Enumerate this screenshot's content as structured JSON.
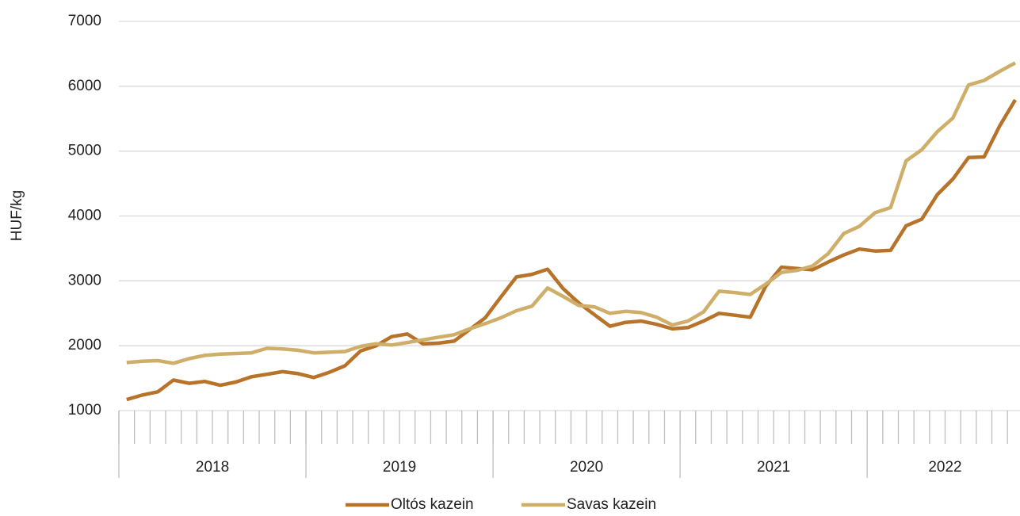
{
  "chart_data": {
    "type": "line",
    "y_label": "HUF/kg",
    "categories": [
      null,
      null,
      null,
      null,
      null,
      null,
      null,
      null,
      null,
      null,
      null,
      null,
      null,
      null,
      null,
      null,
      null,
      null,
      null,
      null,
      null,
      null,
      null,
      null,
      null,
      null,
      null,
      null,
      null,
      null,
      null,
      null,
      null,
      null,
      null,
      null,
      null,
      null,
      null,
      null,
      null,
      null,
      null,
      null,
      null,
      null,
      null,
      null,
      null,
      null,
      null,
      null,
      null,
      null,
      null,
      null,
      null,
      null
    ],
    "groups": [
      {
        "label": "2018",
        "span": 12
      },
      {
        "label": "2019",
        "span": 12
      },
      {
        "label": "2020",
        "span": 12
      },
      {
        "label": "2021",
        "span": 12
      },
      {
        "label": "2022",
        "span": 10
      }
    ],
    "series": [
      {
        "name": "Oltós kazein",
        "color": "#b8732a",
        "values": [
          1170,
          1240,
          1290,
          1470,
          1420,
          1450,
          1390,
          1440,
          1520,
          1560,
          1600,
          1570,
          1510,
          1590,
          1690,
          1920,
          2000,
          2140,
          2180,
          2030,
          2040,
          2070,
          2250,
          2430,
          2750,
          3060,
          3100,
          3180,
          2880,
          2660,
          2480,
          2300,
          2360,
          2380,
          2330,
          2260,
          2280,
          2380,
          2500,
          2470,
          2440,
          2920,
          3210,
          3190,
          3170,
          3290,
          3400,
          3490,
          3460,
          3470,
          3850,
          3950,
          4330,
          4570,
          4900,
          4910,
          5390,
          5790
        ]
      },
      {
        "name": "Savas kazein",
        "color": "#cfae6a",
        "values": [
          1740,
          1760,
          1770,
          1730,
          1800,
          1850,
          1870,
          1880,
          1890,
          1960,
          1950,
          1930,
          1890,
          1900,
          1910,
          1990,
          2030,
          2010,
          2050,
          2090,
          2130,
          2170,
          2260,
          2340,
          2430,
          2540,
          2610,
          2890,
          2760,
          2620,
          2600,
          2500,
          2530,
          2510,
          2440,
          2320,
          2380,
          2520,
          2840,
          2820,
          2790,
          2950,
          3130,
          3160,
          3230,
          3420,
          3730,
          3840,
          4050,
          4130,
          4850,
          5020,
          5300,
          5510,
          6020,
          6090,
          6230,
          6360
        ]
      }
    ],
    "ylim": [
      1000,
      7000
    ],
    "yticks": [
      1000,
      2000,
      3000,
      4000,
      5000,
      6000,
      7000
    ],
    "grid": true,
    "legend": "bottom"
  }
}
